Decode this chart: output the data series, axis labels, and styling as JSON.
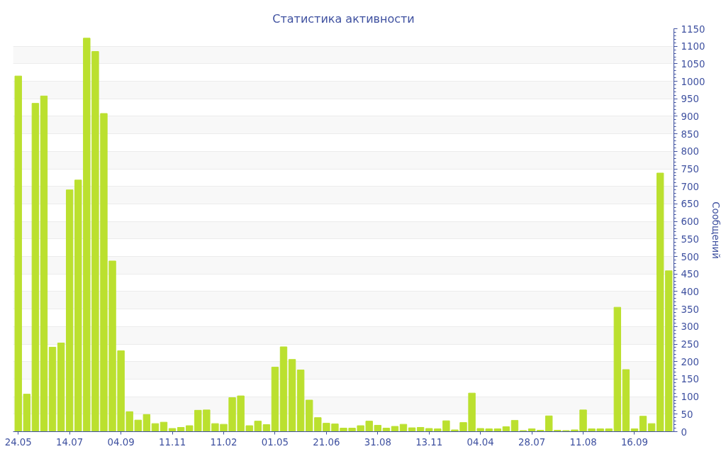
{
  "chart_data": {
    "type": "bar",
    "title": "Статистика активности",
    "ylabel": "Сообщений",
    "categories": [
      "24.05",
      null,
      null,
      null,
      null,
      null,
      "14.07",
      null,
      null,
      null,
      null,
      null,
      "04.09",
      null,
      null,
      null,
      null,
      null,
      "11.11",
      null,
      null,
      null,
      null,
      null,
      "11.02",
      null,
      null,
      null,
      null,
      null,
      "01.05",
      null,
      null,
      null,
      null,
      null,
      "21.06",
      null,
      null,
      null,
      null,
      null,
      "31.08",
      null,
      null,
      null,
      null,
      null,
      "13.11",
      null,
      null,
      null,
      null,
      null,
      "04.04",
      null,
      null,
      null,
      null,
      null,
      "28.07",
      null,
      null,
      null,
      null,
      null,
      "11.08",
      null,
      null,
      null,
      null,
      null,
      "16.09",
      null,
      null,
      null,
      null
    ],
    "values": [
      1015,
      107,
      937,
      958,
      241,
      253,
      690,
      718,
      1123,
      1085,
      908,
      487,
      231,
      57,
      33,
      49,
      23,
      27,
      9,
      12,
      17,
      61,
      62,
      23,
      21,
      97,
      102,
      17,
      30,
      20,
      184,
      242,
      206,
      176,
      90,
      40,
      24,
      22,
      10,
      10,
      17,
      30,
      18,
      10,
      15,
      21,
      11,
      12,
      9,
      8,
      31,
      5,
      26,
      110,
      9,
      8,
      8,
      14,
      32,
      3,
      8,
      4,
      45,
      4,
      3,
      5,
      62,
      8,
      8,
      8,
      355,
      177,
      8,
      44,
      23,
      738,
      459
    ],
    "color": "#bbe02f",
    "ylim": [
      0,
      1150
    ],
    "yticks": [
      0,
      50,
      100,
      150,
      200,
      250,
      300,
      350,
      400,
      450,
      500,
      550,
      600,
      650,
      700,
      750,
      800,
      850,
      900,
      950,
      1000,
      1050,
      1100,
      1150
    ],
    "grid": "y"
  }
}
